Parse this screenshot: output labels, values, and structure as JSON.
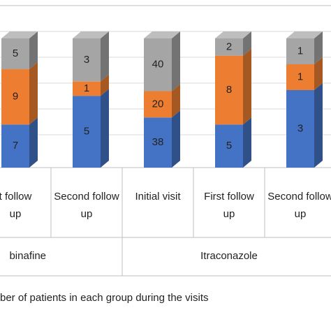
{
  "chart_data": {
    "type": "bar",
    "stacked": true,
    "normalized": true,
    "categories": [
      "t follow up",
      "Second follow up",
      "Initial visit",
      "First follow up",
      "Second follow up"
    ],
    "series": [
      {
        "color": "#4472c4",
        "values": [
          7,
          5,
          38,
          5,
          3
        ]
      },
      {
        "color": "#ed7d31",
        "values": [
          9,
          1,
          20,
          8,
          1
        ]
      },
      {
        "color": "#a5a5a5",
        "values": [
          5,
          3,
          40,
          2,
          1
        ]
      }
    ],
    "groups": [
      {
        "name": "binafine",
        "count": 2
      },
      {
        "name": "Itraconazole",
        "count": 3
      }
    ],
    "caption": "ber of patients in each group during the visits"
  }
}
